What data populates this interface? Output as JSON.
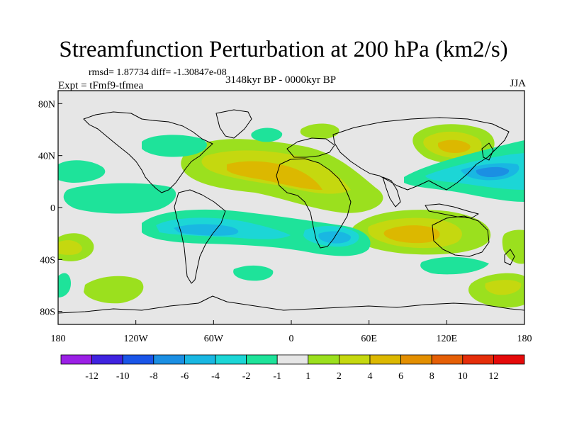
{
  "title": "Streamfunction Perturbation at 200 hPa (km2/s)",
  "stats": "rmsd= 1.87734 diff= -1.30847e-08",
  "experiment": "Expt = tFmf9-tfmea",
  "period": "3148kyr BP - 0000kyr BP",
  "season": "JJA",
  "axes": {
    "y_ticks": [
      {
        "label": "80N",
        "lat": 80
      },
      {
        "label": "40N",
        "lat": 40
      },
      {
        "label": "0",
        "lat": 0
      },
      {
        "label": "40S",
        "lat": -40
      },
      {
        "label": "80S",
        "lat": -80
      }
    ],
    "x_ticks": [
      {
        "label": "180",
        "lon": -180
      },
      {
        "label": "120W",
        "lon": -120
      },
      {
        "label": "60W",
        "lon": -60
      },
      {
        "label": "0",
        "lon": 0
      },
      {
        "label": "60E",
        "lon": 60
      },
      {
        "label": "120E",
        "lon": 120
      },
      {
        "label": "180",
        "lon": 180
      }
    ]
  },
  "colorbar": {
    "labels": [
      "-12",
      "-10",
      "-8",
      "-6",
      "-4",
      "-2",
      "-1",
      "1",
      "2",
      "4",
      "6",
      "8",
      "10",
      "12"
    ],
    "colors": [
      "#9b20e6",
      "#3f23e0",
      "#1a55e8",
      "#1b8fe3",
      "#19b7e2",
      "#1cd6d6",
      "#1ee39a",
      "#e6e6e6",
      "#9be01e",
      "#c5d80f",
      "#dcb800",
      "#e38f00",
      "#e55f06",
      "#e52e0a",
      "#e50a0a"
    ]
  },
  "colors": {
    "background": "#e6e6e6",
    "coast": "#000000"
  }
}
